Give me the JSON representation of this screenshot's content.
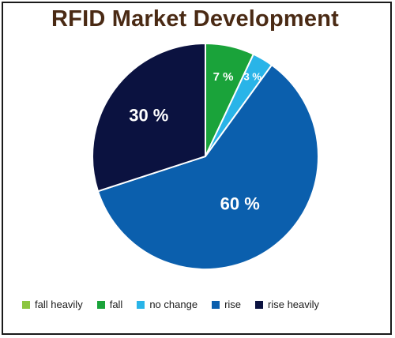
{
  "chart_data": {
    "type": "pie",
    "title": "RFID Market Development",
    "slices": [
      {
        "name": "fall heavily",
        "value": 0,
        "label": "",
        "color": "#8cc63f"
      },
      {
        "name": "fall",
        "value": 7,
        "label": "7 %",
        "color": "#1aa33a"
      },
      {
        "name": "no change",
        "value": 3,
        "label": "3 %",
        "color": "#29b4e8"
      },
      {
        "name": "rise",
        "value": 60,
        "label": "60 %",
        "color": "#0b5fad"
      },
      {
        "name": "rise heavily",
        "value": 30,
        "label": "30 %",
        "color": "#0b1240"
      }
    ],
    "legend_position": "bottom",
    "start_angle": "12 o'clock",
    "direction": "clockwise"
  }
}
